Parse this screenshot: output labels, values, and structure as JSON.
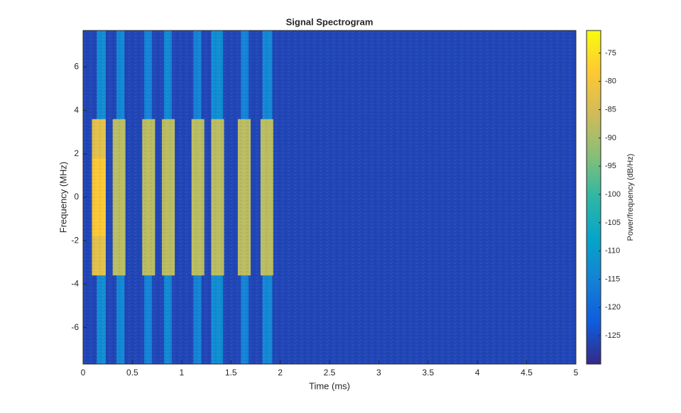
{
  "chart_data": {
    "type": "spectrogram",
    "title": "Signal Spectrogram",
    "x_label": "Time (ms)",
    "y_label": "Frequency (MHz)",
    "colorbar_label": "Power/frequency (dB/Hz)",
    "xlim": [
      0,
      5
    ],
    "xticks": [
      0,
      0.5,
      1,
      1.5,
      2,
      2.5,
      3,
      3.5,
      4,
      4.5,
      5
    ],
    "ylim": [
      -7.68,
      7.68
    ],
    "yticks": [
      -6,
      -4,
      -2,
      0,
      2,
      4,
      6
    ],
    "clim": [
      -130,
      -71
    ],
    "cticks": [
      -125,
      -120,
      -115,
      -110,
      -105,
      -100,
      -95,
      -90,
      -85,
      -80,
      -75
    ],
    "colormap": [
      "#352a87",
      "#0f5cdd",
      "#1481d6",
      "#06a4ca",
      "#2eb7a4",
      "#87bf77",
      "#d1bb59",
      "#fec832",
      "#f9fb0e"
    ],
    "background_power": -126,
    "segments": [
      {
        "start": 0.14,
        "end": 0.23,
        "low": -7.68,
        "high": 7.68,
        "power": -113
      },
      {
        "start": 0.34,
        "end": 0.42,
        "low": -7.68,
        "high": 7.68,
        "power": -114
      },
      {
        "start": 0.62,
        "end": 0.7,
        "low": -7.68,
        "high": 7.68,
        "power": -115
      },
      {
        "start": 0.82,
        "end": 0.9,
        "low": -7.68,
        "high": 7.68,
        "power": -114
      },
      {
        "start": 1.12,
        "end": 1.2,
        "low": -7.68,
        "high": 7.68,
        "power": -115
      },
      {
        "start": 1.3,
        "end": 1.42,
        "low": -7.68,
        "high": 7.68,
        "power": -113
      },
      {
        "start": 1.6,
        "end": 1.68,
        "low": -7.68,
        "high": 7.68,
        "power": -115
      },
      {
        "start": 1.82,
        "end": 1.92,
        "low": -7.68,
        "high": 7.68,
        "power": -114
      },
      {
        "start": 0.09,
        "end": 0.23,
        "low": -3.6,
        "high": 3.6,
        "power": -83
      },
      {
        "start": 0.09,
        "end": 0.23,
        "low": -1.8,
        "high": 1.8,
        "power": -79
      },
      {
        "start": 0.3,
        "end": 0.43,
        "low": -3.6,
        "high": 3.6,
        "power": -88
      },
      {
        "start": 0.6,
        "end": 0.73,
        "low": -3.6,
        "high": 3.6,
        "power": -88
      },
      {
        "start": 0.8,
        "end": 0.93,
        "low": -3.6,
        "high": 3.6,
        "power": -88
      },
      {
        "start": 1.1,
        "end": 1.23,
        "low": -3.6,
        "high": 3.6,
        "power": -88
      },
      {
        "start": 1.3,
        "end": 1.43,
        "low": -3.6,
        "high": 3.6,
        "power": -88
      },
      {
        "start": 1.57,
        "end": 1.7,
        "low": -3.6,
        "high": 3.6,
        "power": -88
      },
      {
        "start": 1.8,
        "end": 1.93,
        "low": -3.6,
        "high": 3.6,
        "power": -88
      }
    ]
  }
}
